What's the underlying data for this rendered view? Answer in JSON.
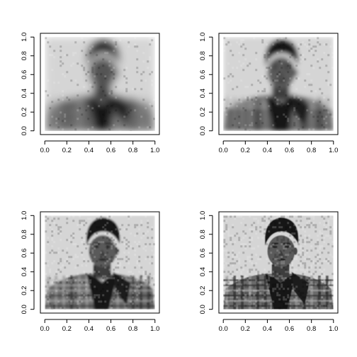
{
  "chart_data": [
    {
      "type": "heatmap",
      "description_of_content": "grayscale portrait image, very low-rank approximation (heavily blurred, blocky)",
      "xlim": [
        0,
        1
      ],
      "ylim": [
        0,
        1
      ],
      "x_ticks": [
        "0.0",
        "0.2",
        "0.4",
        "0.6",
        "0.8",
        "1.0"
      ],
      "y_ticks": [
        "0.0",
        "0.2",
        "0.4",
        "0.6",
        "0.8",
        "1.0"
      ],
      "blur": 5.5,
      "noise": 0.02
    },
    {
      "type": "heatmap",
      "description_of_content": "grayscale portrait image, low-rank approximation (blurred)",
      "xlim": [
        0,
        1
      ],
      "ylim": [
        0,
        1
      ],
      "x_ticks": [
        "0.0",
        "0.2",
        "0.4",
        "0.6",
        "0.8",
        "1.0"
      ],
      "y_ticks": [
        "0.0",
        "0.2",
        "0.4",
        "0.6",
        "0.8",
        "1.0"
      ],
      "blur": 3.2,
      "noise": 0.03
    },
    {
      "type": "heatmap",
      "description_of_content": "grayscale portrait image, higher-rank approximation (mostly clear)",
      "xlim": [
        0,
        1
      ],
      "ylim": [
        0,
        1
      ],
      "x_ticks": [
        "0.0",
        "0.2",
        "0.4",
        "0.6",
        "0.8",
        "1.0"
      ],
      "y_ticks": [
        "0.0",
        "0.2",
        "0.4",
        "0.6",
        "0.8",
        "1.0"
      ],
      "blur": 1.2,
      "noise": 0.05
    },
    {
      "type": "heatmap",
      "description_of_content": "grayscale portrait image, near full-rank approximation (clear, grainy)",
      "xlim": [
        0,
        1
      ],
      "ylim": [
        0,
        1
      ],
      "x_ticks": [
        "0.0",
        "0.2",
        "0.4",
        "0.6",
        "0.8",
        "1.0"
      ],
      "y_ticks": [
        "0.0",
        "0.2",
        "0.4",
        "0.6",
        "0.8",
        "1.0"
      ],
      "blur": 0.5,
      "noise": 0.08
    }
  ],
  "colors": {
    "axis": "#000000",
    "background": "#ffffff",
    "dark": "#1a1a1a",
    "light": "#d8d8d8"
  }
}
